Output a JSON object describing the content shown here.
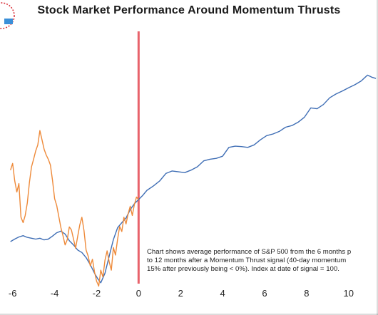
{
  "chart_data": {
    "type": "line",
    "title": "Stock Market Performance Around Momentum Thrusts",
    "xlabel": "",
    "ylabel": "",
    "xlim": [
      -6.6,
      11.4
    ],
    "ylim": [
      80,
      140
    ],
    "x_ticks": [
      -6,
      -4,
      -2,
      0,
      2,
      4,
      6,
      8,
      10
    ],
    "grid": false,
    "signal_line_x": 0,
    "signal_line_color": "#e8636b",
    "annotation": "Chart shows average performance of S&P 500 from the 6 months p\nto 12 months after a Momentum Thrust signal (40-day momentum\n15% after previously being < 0%). Index at date of signal = 100.",
    "series": [
      {
        "color": "#3f6eb5",
        "x": [
          -6.1,
          -5.9,
          -5.7,
          -5.5,
          -5.3,
          -5.1,
          -4.9,
          -4.7,
          -4.5,
          -4.3,
          -4.1,
          -3.9,
          -3.7,
          -3.5,
          -3.3,
          -3.1,
          -2.9,
          -2.7,
          -2.5,
          -2.3,
          -2.1,
          -1.95,
          -1.8,
          -1.6,
          -1.4,
          -1.2,
          -1.0,
          -0.8,
          -0.6,
          -0.4,
          -0.2,
          0.0,
          0.2,
          0.4,
          0.7,
          1.0,
          1.3,
          1.6,
          1.9,
          2.2,
          2.5,
          2.8,
          3.1,
          3.4,
          3.7,
          4.0,
          4.3,
          4.6,
          4.9,
          5.2,
          5.5,
          5.8,
          6.1,
          6.4,
          6.7,
          7.0,
          7.3,
          7.6,
          7.9,
          8.2,
          8.5,
          8.8,
          9.1,
          9.4,
          9.7,
          10.0,
          10.3,
          10.6,
          10.9,
          11.1,
          11.3
        ],
        "values": [
          90.0,
          90.6,
          91.1,
          91.4,
          91.0,
          90.8,
          90.6,
          90.8,
          90.4,
          90.6,
          91.3,
          92.1,
          92.5,
          91.8,
          90.2,
          89.2,
          88.0,
          87.4,
          86.2,
          84.5,
          82.5,
          81.2,
          80.2,
          82.5,
          86.5,
          90.5,
          93.3,
          94.5,
          95.6,
          97.6,
          99.0,
          100.0,
          101.0,
          102.2,
          103.2,
          104.4,
          106.2,
          106.8,
          106.6,
          106.4,
          107.0,
          107.8,
          109.2,
          109.6,
          109.8,
          110.3,
          112.4,
          112.7,
          112.6,
          112.4,
          113.0,
          114.2,
          115.2,
          115.6,
          116.2,
          117.2,
          117.6,
          118.4,
          119.6,
          121.8,
          121.6,
          122.6,
          124.2,
          125.1,
          125.8,
          126.6,
          127.3,
          128.2,
          129.6,
          129.1,
          128.8
        ]
      },
      {
        "color": "#ee8a3a",
        "x": [
          -6.1,
          -6.0,
          -5.9,
          -5.8,
          -5.7,
          -5.6,
          -5.5,
          -5.4,
          -5.3,
          -5.2,
          -5.1,
          -5.0,
          -4.9,
          -4.8,
          -4.7,
          -4.6,
          -4.5,
          -4.4,
          -4.3,
          -4.2,
          -4.1,
          -4.0,
          -3.9,
          -3.8,
          -3.7,
          -3.6,
          -3.5,
          -3.4,
          -3.3,
          -3.2,
          -3.1,
          -3.0,
          -2.9,
          -2.8,
          -2.7,
          -2.6,
          -2.5,
          -2.4,
          -2.3,
          -2.2,
          -2.1,
          -2.0,
          -1.9,
          -1.8,
          -1.7,
          -1.6,
          -1.5,
          -1.4,
          -1.3,
          -1.2,
          -1.1,
          -1.0,
          -0.9,
          -0.8,
          -0.7,
          -0.6,
          -0.5,
          -0.4,
          -0.3,
          -0.2,
          -0.1,
          0.0
        ],
        "values": [
          107.0,
          108.6,
          104.5,
          101.8,
          103.8,
          95.8,
          94.5,
          96.2,
          99.2,
          104.0,
          107.8,
          109.6,
          111.6,
          113.0,
          116.4,
          114.2,
          112.0,
          110.6,
          109.6,
          108.2,
          104.6,
          100.2,
          98.6,
          96.0,
          93.3,
          91.4,
          89.2,
          90.4,
          93.5,
          92.8,
          90.6,
          88.4,
          91.2,
          94.0,
          95.8,
          92.6,
          88.0,
          86.5,
          84.2,
          85.8,
          82.8,
          80.6,
          79.4,
          83.2,
          81.6,
          85.6,
          87.8,
          85.2,
          83.2,
          88.6,
          86.8,
          90.6,
          93.6,
          92.4,
          95.8,
          94.2,
          96.6,
          98.4,
          96.2,
          98.8,
          100.6,
          100.0
        ]
      }
    ]
  }
}
